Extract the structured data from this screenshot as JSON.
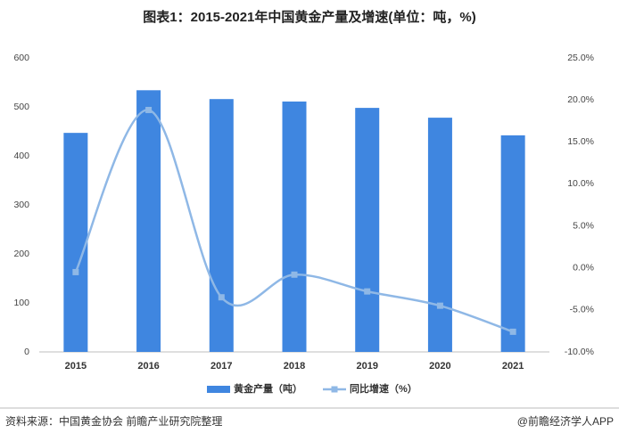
{
  "chart_data": {
    "type": "bar-line",
    "title": "图表1：2015-2021年中国黄金产量及增速(单位：吨，%)",
    "categories": [
      "2015",
      "2016",
      "2017",
      "2018",
      "2019",
      "2020",
      "2021"
    ],
    "series": [
      {
        "name": "黄金产量（吨）",
        "type": "bar",
        "color": "#3f86e0",
        "values": [
          447,
          534,
          516,
          511,
          498,
          478,
          442
        ]
      },
      {
        "name": "同比增速（%）",
        "type": "line",
        "axis": "y2",
        "color": "#8fb8e6",
        "values": [
          -0.5,
          18.8,
          -3.5,
          -0.8,
          -2.8,
          -4.5,
          -7.6
        ]
      }
    ],
    "ylim": [
      0,
      600
    ],
    "yticks": [
      0,
      100,
      200,
      300,
      400,
      500,
      600
    ],
    "y2lim": [
      -10,
      25
    ],
    "y2ticks": [
      {
        "value": -10,
        "label": "-10.0%"
      },
      {
        "value": -5,
        "label": "-5.0%"
      },
      {
        "value": 0,
        "label": "0.0%"
      },
      {
        "value": 5,
        "label": "5.0%"
      },
      {
        "value": 10,
        "label": "10.0%"
      },
      {
        "value": 15,
        "label": "15.0%"
      },
      {
        "value": 20,
        "label": "20.0%"
      },
      {
        "value": 25,
        "label": "25.0%"
      }
    ],
    "grid": false,
    "legend": "bottom",
    "source": "资料来源：中国黄金协会 前瞻产业研究院整理",
    "credit": "@前瞻经济学人APP"
  }
}
